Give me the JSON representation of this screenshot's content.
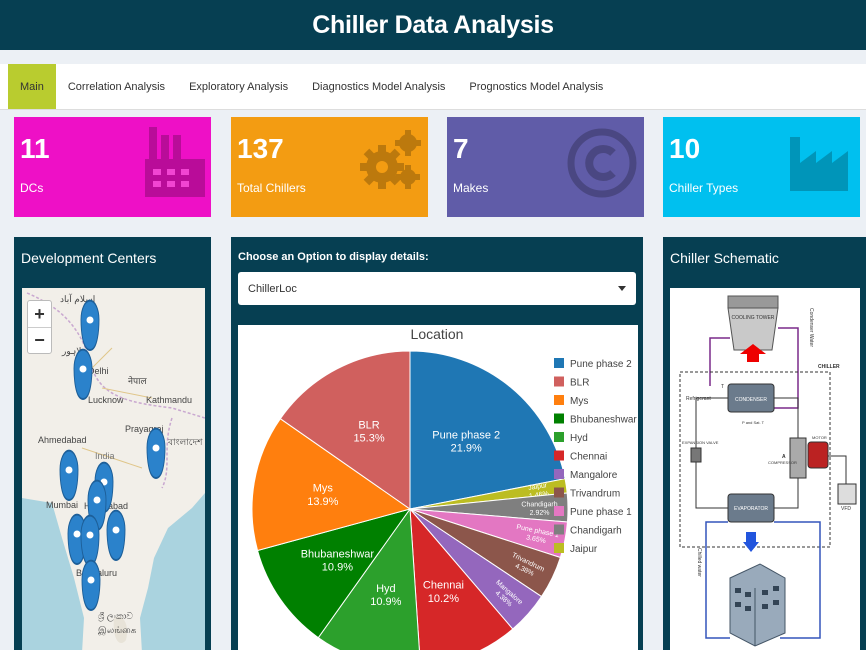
{
  "app": {
    "title": "Chiller Data Analysis"
  },
  "tabs": [
    {
      "label": "Main",
      "active": true
    },
    {
      "label": "Correlation Analysis"
    },
    {
      "label": "Exploratory Analysis"
    },
    {
      "label": "Diagnostics Model Analysis"
    },
    {
      "label": "Prognostics Model Analysis"
    }
  ],
  "value_boxes": [
    {
      "value": "11",
      "label": "DCs",
      "color": "#ee10c6",
      "icon": "factory-icon"
    },
    {
      "value": "137",
      "label": "Total Chillers",
      "color": "#f39c12",
      "icon": "gears-icon"
    },
    {
      "value": "7",
      "label": "Makes",
      "color": "#605ca8",
      "icon": "copyright-icon"
    },
    {
      "value": "10",
      "label": "Chiller Types",
      "color": "#00c0ef",
      "icon": "industry-icon"
    }
  ],
  "dev_centers": {
    "title": "Development Centers",
    "zoom_in": "+",
    "zoom_out": "−",
    "map_labels": [
      "اسلام آباد",
      "لاہور",
      "Delhi",
      "Lucknow",
      "Kathmandu",
      "नेपाल",
      "Prayagraj",
      "Ahmedabad",
      "বাংলাদেশ",
      "India",
      "Mumbai",
      "Hyderabad",
      "Bengaluru",
      "ශ්‍රී ලංකාව",
      "இலங்கை"
    ]
  },
  "selector": {
    "label": "Choose an Option to display details:",
    "value": "ChillerLoc"
  },
  "chart_data": {
    "type": "pie",
    "title": "Location",
    "slices": [
      {
        "label": "Pune phase 2",
        "percent": 21.9,
        "color": "#1f77b4"
      },
      {
        "label": "Jaipur",
        "percent": 1.46,
        "color": "#bcbd22"
      },
      {
        "label": "Chandigarh",
        "percent": 2.92,
        "color": "#7f7f7f"
      },
      {
        "label": "Pune phase 1",
        "percent": 3.65,
        "color": "#e377c2"
      },
      {
        "label": "Trivandrum",
        "percent": 4.38,
        "color": "#8c564b"
      },
      {
        "label": "Mangalore",
        "percent": 4.38,
        "color": "#9467bd"
      },
      {
        "label": "Chennai",
        "percent": 10.2,
        "color": "#d62728"
      },
      {
        "label": "Hyd",
        "percent": 10.9,
        "color": "#2ca02c"
      },
      {
        "label": "Bhubaneshwar",
        "percent": 10.9,
        "color": "#008000"
      },
      {
        "label": "Mys",
        "percent": 13.9,
        "color": "#ff7f0e"
      },
      {
        "label": "BLR",
        "percent": 15.3,
        "color": "#d0605e"
      }
    ],
    "legend": [
      "Pune phase 2",
      "BLR",
      "Mys",
      "Bhubaneshwar",
      "Hyd",
      "Chennai",
      "Mangalore",
      "Trivandrum",
      "Pune phase 1",
      "Chandigarh",
      "Jaipur"
    ],
    "legend_placement": "right"
  },
  "schematic": {
    "title": "Chiller Schematic",
    "labels": {
      "cooling_tower": "COOLING TOWER",
      "condenser_water": "Condenser Water",
      "chiller": "CHILLER",
      "refrigerant": "Refrigerant",
      "condenser": "CONDENSER",
      "p_sat_t": "P and Sat. T",
      "motor": "MOTOR",
      "compressor": "COMPRESSOR",
      "expansion_valve": "EXPANSION VALVE",
      "evaporator": "EVAPORATOR",
      "vfd": "VFD",
      "chilled_water": "Chilled water",
      "t": "T",
      "a": "A"
    }
  }
}
